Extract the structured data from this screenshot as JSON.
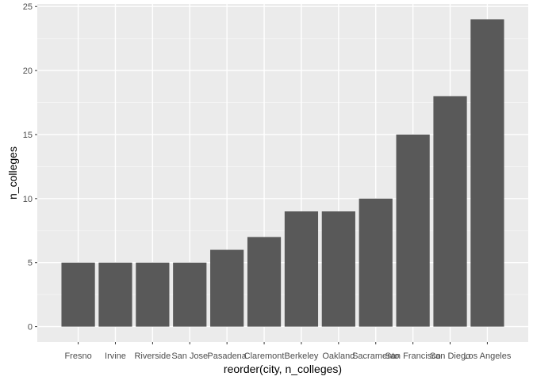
{
  "chart_data": {
    "type": "bar",
    "title": "",
    "xlabel": "reorder(city, n_colleges)",
    "ylabel": "n_colleges",
    "categories": [
      "Fresno",
      "Irvine",
      "Riverside",
      "San Jose",
      "Pasadena",
      "Claremont",
      "Berkeley",
      "Oakland",
      "Sacramento",
      "San Francisco",
      "San Diego",
      "Los Angeles"
    ],
    "values": [
      5,
      5,
      5,
      5,
      6,
      7,
      9,
      9,
      10,
      15,
      18,
      24
    ],
    "ylim": [
      -1.2,
      25.2
    ],
    "yticks": [
      0,
      5,
      10,
      15,
      20,
      25
    ],
    "grid": true,
    "legend": "none"
  },
  "colors": {
    "panel_background": "#ebebeb",
    "grid_major": "#ffffff",
    "grid_minor": "#f5f5f5",
    "bar_fill": "#595959",
    "tick_text": "#4d4d4d",
    "tick_mark": "#333333"
  }
}
